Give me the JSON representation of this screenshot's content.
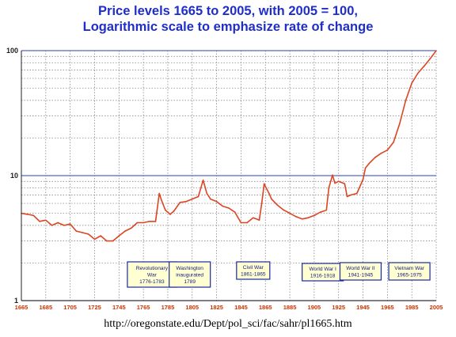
{
  "chart_data": {
    "type": "line",
    "title": "Price levels 1665 to 2005, with 2005 = 100,",
    "subtitle": "Logarithmic scale to emphasize rate of change",
    "xlabel": "",
    "ylabel": "",
    "y_scale": "log",
    "xlim": [
      1665,
      2005
    ],
    "ylim": [
      1,
      100
    ],
    "grid": true,
    "line_color": "#dd4422",
    "x_ticks": [
      "1665",
      "1685",
      "1705",
      "1725",
      "1745",
      "1765",
      "1785",
      "1805",
      "1825",
      "1845",
      "1865",
      "1885",
      "1905",
      "1925",
      "1945",
      "1965",
      "1985",
      "2005"
    ],
    "y_ticks": [
      "1",
      "10",
      "100"
    ],
    "series": [
      {
        "x": [
          1665,
          1670,
          1675,
          1680,
          1685,
          1690,
          1695,
          1700,
          1705,
          1710,
          1715,
          1720,
          1725,
          1730,
          1735,
          1740,
          1745,
          1750,
          1755,
          1760,
          1765,
          1770,
          1775,
          1778,
          1780,
          1783,
          1787,
          1790,
          1795,
          1800,
          1805,
          1810,
          1814,
          1817,
          1820,
          1825,
          1830,
          1835,
          1840,
          1845,
          1850,
          1855,
          1860,
          1862,
          1864,
          1865,
          1868,
          1870,
          1875,
          1880,
          1885,
          1890,
          1895,
          1900,
          1905,
          1910,
          1915,
          1917,
          1920,
          1922,
          1925,
          1930,
          1932,
          1935,
          1940,
          1945,
          1947,
          1950,
          1955,
          1960,
          1965,
          1970,
          1975,
          1980,
          1985,
          1990,
          1995,
          2000,
          2005
        ],
        "y": [
          5.0,
          4.9,
          4.8,
          4.3,
          4.4,
          4.0,
          4.2,
          4.0,
          4.1,
          3.6,
          3.5,
          3.4,
          3.1,
          3.3,
          3.0,
          3.0,
          3.3,
          3.6,
          3.8,
          4.2,
          4.2,
          4.3,
          4.3,
          7.2,
          6.3,
          5.3,
          4.9,
          5.2,
          6.1,
          6.2,
          6.5,
          6.8,
          9.2,
          7.2,
          6.5,
          6.2,
          5.7,
          5.5,
          5.1,
          4.2,
          4.2,
          4.6,
          4.4,
          6.0,
          8.6,
          8.2,
          7.2,
          6.5,
          5.8,
          5.3,
          5.0,
          4.7,
          4.5,
          4.6,
          4.8,
          5.1,
          5.3,
          8.0,
          10.1,
          8.7,
          9.0,
          8.6,
          6.8,
          7.0,
          7.2,
          9.3,
          11.5,
          12.5,
          14.0,
          15.1,
          16.0,
          18.5,
          26.0,
          40.0,
          55.0,
          66.0,
          75.0,
          86.0,
          100.0
        ]
      }
    ],
    "annotations": [
      {
        "x_start": 1776,
        "x_end": 1783,
        "line1": "Revolutionary",
        "line2": "War",
        "line3": "1776-1783"
      },
      {
        "x_start": 1789,
        "x_end": 1789,
        "line1": "Washington",
        "line2": "inaugurated",
        "line3": "1789"
      },
      {
        "x_start": 1861,
        "x_end": 1865,
        "line1": "Civil War",
        "line2": "1861-1865",
        "line3": ""
      },
      {
        "x_start": 1916,
        "x_end": 1918,
        "line1": "World War I",
        "line2": "1916-1918",
        "line3": ""
      },
      {
        "x_start": 1941,
        "x_end": 1945,
        "line1": "World War II",
        "line2": "1941-1945",
        "line3": ""
      },
      {
        "x_start": 1965,
        "x_end": 1975,
        "line1": "Vietnam War",
        "line2": "1965-1975",
        "line3": ""
      }
    ]
  },
  "source_url": "http://oregonstate.edu/Dept/pol_sci/fac/sahr/pl1665.htm"
}
